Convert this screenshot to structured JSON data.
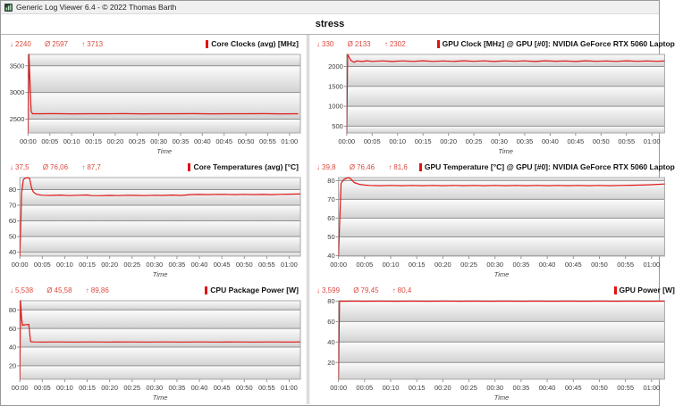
{
  "window": {
    "title": "Generic Log Viewer 6.4 - © 2022 Thomas Barth"
  },
  "page_title": "stress",
  "glyphs": {
    "down": "↓",
    "avg": "Ø",
    "up": "↑"
  },
  "colors": {
    "line": "#e01818",
    "legend_bar": "#e01212",
    "stats_text": "#dd4a3f",
    "grid": "#909090",
    "plot_border": "#a8a8a8",
    "band_top": "#fcfcfc",
    "band_bottom": "#d2d2d2",
    "tick_text": "#3a3a3a"
  },
  "x_axis": {
    "label": "Time",
    "max_minutes": 62.5,
    "tick_minutes": [
      0,
      5,
      10,
      15,
      20,
      25,
      30,
      35,
      40,
      45,
      50,
      55,
      60
    ],
    "tick_labels": [
      "00:00",
      "00:05",
      "00:10",
      "00:15",
      "00:20",
      "00:25",
      "00:30",
      "00:35",
      "00:40",
      "00:45",
      "00:50",
      "00:55",
      "01:00"
    ]
  },
  "chart_data": [
    {
      "type": "line",
      "title": "Core Clocks (avg) [MHz]",
      "stats": {
        "min": "2240",
        "avg": "2597",
        "max": "3713"
      },
      "y_min": 2240,
      "y_max": 3713,
      "y_ticks": [
        2500,
        3000,
        3500
      ],
      "points": [
        [
          0,
          2240
        ],
        [
          0.2,
          3713
        ],
        [
          0.7,
          2650
        ],
        [
          1,
          2600
        ],
        [
          3,
          2600
        ],
        [
          6,
          2601
        ],
        [
          10,
          2599
        ],
        [
          14,
          2600
        ],
        [
          18,
          2600
        ],
        [
          22,
          2601
        ],
        [
          26,
          2599
        ],
        [
          30,
          2600
        ],
        [
          34,
          2600
        ],
        [
          38,
          2601
        ],
        [
          42,
          2599
        ],
        [
          46,
          2600
        ],
        [
          50,
          2600
        ],
        [
          54,
          2601
        ],
        [
          58,
          2599
        ],
        [
          62,
          2600
        ]
      ]
    },
    {
      "type": "line",
      "title": "GPU Clock [MHz] @ GPU [#0]: NVIDIA GeForce RTX 5060 Laptop",
      "stats": {
        "min": "330",
        "avg": "2133",
        "max": "2302"
      },
      "y_min": 330,
      "y_max": 2302,
      "y_ticks": [
        500,
        1000,
        1500,
        2000
      ],
      "points": [
        [
          0,
          330
        ],
        [
          0.2,
          2302
        ],
        [
          0.8,
          2150
        ],
        [
          1.5,
          2105
        ],
        [
          2,
          2140
        ],
        [
          3,
          2125
        ],
        [
          4,
          2142
        ],
        [
          5,
          2128
        ],
        [
          7,
          2140
        ],
        [
          9,
          2126
        ],
        [
          11,
          2140
        ],
        [
          13,
          2128
        ],
        [
          15,
          2142
        ],
        [
          17,
          2128
        ],
        [
          19,
          2138
        ],
        [
          21,
          2128
        ],
        [
          23,
          2142
        ],
        [
          25,
          2130
        ],
        [
          27,
          2140
        ],
        [
          29,
          2126
        ],
        [
          31,
          2140
        ],
        [
          33,
          2130
        ],
        [
          35,
          2140
        ],
        [
          37,
          2126
        ],
        [
          39,
          2142
        ],
        [
          41,
          2132
        ],
        [
          43,
          2138
        ],
        [
          45,
          2126
        ],
        [
          47,
          2142
        ],
        [
          49,
          2130
        ],
        [
          51,
          2138
        ],
        [
          53,
          2128
        ],
        [
          55,
          2142
        ],
        [
          57,
          2130
        ],
        [
          59,
          2138
        ],
        [
          61,
          2130
        ],
        [
          62.5,
          2136
        ]
      ]
    },
    {
      "type": "line",
      "title": "Core Temperatures (avg) [°C]",
      "stats": {
        "min": "37,5",
        "avg": "76,06",
        "max": "87,7"
      },
      "y_min": 37.5,
      "y_max": 87.7,
      "y_ticks": [
        40,
        50,
        60,
        70,
        80
      ],
      "points": [
        [
          0,
          37.5
        ],
        [
          0.4,
          78
        ],
        [
          0.8,
          86.5
        ],
        [
          1.2,
          87.3
        ],
        [
          1.8,
          87.7
        ],
        [
          2.2,
          87
        ],
        [
          2.6,
          81
        ],
        [
          3,
          78.5
        ],
        [
          3.5,
          77.3
        ],
        [
          4,
          76.8
        ],
        [
          5,
          76.4
        ],
        [
          7,
          76.3
        ],
        [
          9,
          76.5
        ],
        [
          11,
          76.2
        ],
        [
          13,
          76.4
        ],
        [
          15,
          76.6
        ],
        [
          16,
          76.2
        ],
        [
          18,
          76.1
        ],
        [
          20,
          76.3
        ],
        [
          22,
          76.2
        ],
        [
          24,
          76.4
        ],
        [
          26,
          76.3
        ],
        [
          28,
          76.2
        ],
        [
          30,
          76.4
        ],
        [
          32,
          76.3
        ],
        [
          34,
          76.5
        ],
        [
          36,
          76.3
        ],
        [
          38,
          76.8
        ],
        [
          40,
          76.9
        ],
        [
          42,
          76.8
        ],
        [
          44,
          77
        ],
        [
          46,
          76.9
        ],
        [
          48,
          76.8
        ],
        [
          50,
          77
        ],
        [
          52,
          76.8
        ],
        [
          54,
          76.9
        ],
        [
          56,
          76.8
        ],
        [
          58,
          77
        ],
        [
          60,
          77.1
        ],
        [
          62.5,
          77.2
        ]
      ]
    },
    {
      "type": "line",
      "title": "GPU Temperature [°C] @ GPU [#0]: NVIDIA GeForce RTX 5060 Laptop",
      "stats": {
        "min": "39,8",
        "avg": "76,46",
        "max": "81,6"
      },
      "y_min": 39.8,
      "y_max": 81.6,
      "y_ticks": [
        40,
        50,
        60,
        70,
        80
      ],
      "points": [
        [
          0,
          39.8
        ],
        [
          0.5,
          78.5
        ],
        [
          1,
          80.5
        ],
        [
          1.5,
          81.3
        ],
        [
          2,
          81.6
        ],
        [
          2.5,
          80.5
        ],
        [
          3,
          79
        ],
        [
          4,
          78
        ],
        [
          5,
          77.6
        ],
        [
          6,
          77.4
        ],
        [
          8,
          77.3
        ],
        [
          10,
          77.4
        ],
        [
          12,
          77.3
        ],
        [
          14,
          77.4
        ],
        [
          16,
          77.3
        ],
        [
          18,
          77.4
        ],
        [
          20,
          77.3
        ],
        [
          22,
          77.4
        ],
        [
          24,
          77.3
        ],
        [
          26,
          77.4
        ],
        [
          28,
          77.3
        ],
        [
          30,
          77.4
        ],
        [
          32,
          77.3
        ],
        [
          34,
          77.4
        ],
        [
          36,
          77.3
        ],
        [
          38,
          77.4
        ],
        [
          40,
          77.3
        ],
        [
          42,
          77.4
        ],
        [
          44,
          77.3
        ],
        [
          46,
          77.4
        ],
        [
          48,
          77.3
        ],
        [
          50,
          77.4
        ],
        [
          52,
          77.3
        ],
        [
          54,
          77.4
        ],
        [
          56,
          77.5
        ],
        [
          58,
          77.6
        ],
        [
          60,
          77.8
        ],
        [
          62.5,
          78.2
        ]
      ]
    },
    {
      "type": "line",
      "title": "CPU Package Power [W]",
      "stats": {
        "min": "5,538",
        "avg": "45,58",
        "max": "89,86"
      },
      "y_min": 5.538,
      "y_max": 89.86,
      "y_ticks": [
        20,
        40,
        60,
        80
      ],
      "points": [
        [
          0,
          5.5
        ],
        [
          0.15,
          89.86
        ],
        [
          0.4,
          70
        ],
        [
          0.6,
          63.5
        ],
        [
          1,
          64
        ],
        [
          1.5,
          64.2
        ],
        [
          2,
          64.5
        ],
        [
          2.2,
          55
        ],
        [
          2.4,
          46
        ],
        [
          3,
          45.6
        ],
        [
          5,
          45.5
        ],
        [
          8,
          45.6
        ],
        [
          12,
          45.5
        ],
        [
          16,
          45.6
        ],
        [
          20,
          45.5
        ],
        [
          24,
          45.6
        ],
        [
          28,
          45.5
        ],
        [
          32,
          45.6
        ],
        [
          36,
          45.5
        ],
        [
          40,
          45.6
        ],
        [
          44,
          45.5
        ],
        [
          48,
          45.6
        ],
        [
          52,
          45.5
        ],
        [
          56,
          45.6
        ],
        [
          60,
          45.5
        ],
        [
          62.5,
          45.6
        ]
      ]
    },
    {
      "type": "line",
      "title": "GPU Power [W]",
      "stats": {
        "min": "3,599",
        "avg": "79,45",
        "max": "80,4"
      },
      "y_min": 3.599,
      "y_max": 80.4,
      "y_ticks": [
        20,
        40,
        60,
        80
      ],
      "points": [
        [
          0,
          3.6
        ],
        [
          0.2,
          80
        ],
        [
          1,
          79.9
        ],
        [
          3,
          80
        ],
        [
          5,
          79.9
        ],
        [
          8,
          80
        ],
        [
          11,
          79.9
        ],
        [
          14,
          80
        ],
        [
          17,
          79.9
        ],
        [
          20,
          80
        ],
        [
          23,
          79.9
        ],
        [
          26,
          80
        ],
        [
          29,
          79.9
        ],
        [
          32,
          80
        ],
        [
          35,
          79.9
        ],
        [
          38,
          80
        ],
        [
          41,
          79.9
        ],
        [
          44,
          80
        ],
        [
          47,
          79.9
        ],
        [
          50,
          80
        ],
        [
          53,
          79.9
        ],
        [
          56,
          80
        ],
        [
          59,
          79.9
        ],
        [
          62.5,
          80
        ]
      ]
    }
  ]
}
